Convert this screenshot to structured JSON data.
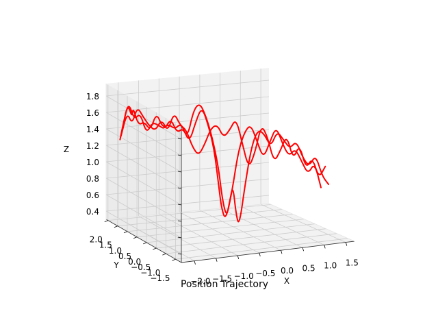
{
  "chart_data": {
    "type": "line",
    "projection": "3d",
    "title": "Position Trajectory",
    "xlabel": "X",
    "ylabel": "Y",
    "zlabel": "Z",
    "xlim": [
      -2.3,
      1.7
    ],
    "ylim": [
      -1.8,
      2.1
    ],
    "zlim": [
      0.3,
      1.95
    ],
    "x_ticks": [
      "−2.0",
      "−1.5",
      "−1.0",
      "−0.5",
      "0.0",
      "0.5",
      "1.0",
      "1.5"
    ],
    "x_tick_values": [
      -2.0,
      -1.5,
      -1.0,
      -0.5,
      0.0,
      0.5,
      1.0,
      1.5
    ],
    "y_ticks": [
      "2.0",
      "1.5",
      "1.0",
      "0.5",
      "0.0",
      "−0.5",
      "−1.0",
      "−1.5"
    ],
    "y_tick_values": [
      2.0,
      1.5,
      1.0,
      0.5,
      0.0,
      -0.5,
      -1.0,
      -1.5
    ],
    "z_ticks": [
      "1.8",
      "1.6",
      "1.4",
      "1.2",
      "1.0",
      "0.8",
      "0.6",
      "0.4"
    ],
    "z_tick_values": [
      1.8,
      1.6,
      1.4,
      1.2,
      1.0,
      0.8,
      0.6,
      0.4
    ],
    "grid": true,
    "pane_color": "#f2f2f2",
    "grid_color": "#cccccc",
    "series": [
      {
        "color": "#ff0000",
        "points": [
          [
            -2.1,
            1.8,
            1.3
          ],
          [
            -2.05,
            1.7,
            1.55
          ],
          [
            -2.0,
            1.6,
            1.75
          ],
          [
            -1.95,
            1.5,
            1.6
          ],
          [
            -1.9,
            1.55,
            1.72
          ],
          [
            -1.8,
            1.5,
            1.5
          ],
          [
            -1.7,
            1.4,
            1.55
          ],
          [
            -1.6,
            1.3,
            1.45
          ],
          [
            -1.5,
            1.2,
            1.68
          ],
          [
            -1.4,
            1.1,
            1.5
          ],
          [
            -1.3,
            1.0,
            1.55
          ],
          [
            -1.2,
            0.9,
            1.5
          ],
          [
            -1.1,
            0.8,
            1.58
          ],
          [
            -1.0,
            0.7,
            1.4
          ],
          [
            -0.9,
            0.6,
            1.75
          ],
          [
            -0.8,
            0.5,
            1.85
          ],
          [
            -0.7,
            0.4,
            1.7
          ],
          [
            -0.6,
            0.3,
            1.45
          ],
          [
            -0.5,
            0.2,
            1.1
          ],
          [
            -0.45,
            0.1,
            0.7
          ],
          [
            -0.4,
            0.0,
            0.5
          ],
          [
            -0.35,
            -0.05,
            0.7
          ],
          [
            -0.3,
            -0.1,
            0.9
          ],
          [
            -0.25,
            -0.15,
            0.55
          ],
          [
            -0.2,
            -0.2,
            0.4
          ],
          [
            -0.1,
            -0.3,
            0.95
          ],
          [
            0.0,
            -0.4,
            1.4
          ],
          [
            0.1,
            -0.5,
            1.6
          ],
          [
            0.2,
            -0.6,
            1.55
          ],
          [
            0.3,
            -0.7,
            1.4
          ],
          [
            0.4,
            -0.8,
            1.6
          ],
          [
            0.5,
            -0.9,
            1.5
          ],
          [
            0.6,
            -1.0,
            1.4
          ],
          [
            0.7,
            -1.1,
            1.5
          ],
          [
            0.8,
            -1.2,
            1.3
          ],
          [
            0.9,
            -1.3,
            1.2
          ],
          [
            1.0,
            -1.4,
            1.35
          ],
          [
            1.1,
            -1.5,
            1.1
          ],
          [
            1.2,
            -1.6,
            1.0
          ]
        ]
      },
      {
        "color": "#ff0000",
        "points": [
          [
            -2.1,
            1.75,
            1.35
          ],
          [
            -2.0,
            1.65,
            1.65
          ],
          [
            -1.9,
            1.6,
            1.5
          ],
          [
            -1.8,
            1.55,
            1.72
          ],
          [
            -1.7,
            1.45,
            1.6
          ],
          [
            -1.6,
            1.35,
            1.5
          ],
          [
            -1.5,
            1.25,
            1.45
          ],
          [
            -1.4,
            1.15,
            1.6
          ],
          [
            -1.3,
            1.05,
            1.45
          ],
          [
            -1.2,
            0.95,
            1.7
          ],
          [
            -1.1,
            0.85,
            1.55
          ],
          [
            -1.0,
            0.75,
            1.5
          ],
          [
            -0.9,
            0.65,
            1.3
          ],
          [
            -0.8,
            0.55,
            1.2
          ],
          [
            -0.7,
            0.45,
            1.35
          ],
          [
            -0.6,
            0.35,
            1.55
          ],
          [
            -0.5,
            0.25,
            1.6
          ],
          [
            -0.4,
            0.15,
            1.45
          ],
          [
            -0.3,
            0.05,
            1.55
          ],
          [
            -0.2,
            -0.05,
            1.7
          ],
          [
            -0.1,
            -0.15,
            1.4
          ],
          [
            0.0,
            -0.25,
            1.1
          ],
          [
            0.1,
            -0.35,
            1.3
          ],
          [
            0.2,
            -0.45,
            1.65
          ],
          [
            0.3,
            -0.55,
            1.5
          ],
          [
            0.4,
            -0.65,
            1.2
          ],
          [
            0.5,
            -0.75,
            1.35
          ],
          [
            0.6,
            -0.85,
            1.55
          ],
          [
            0.7,
            -0.95,
            1.25
          ],
          [
            0.8,
            -1.05,
            1.45
          ],
          [
            0.9,
            -1.15,
            1.15
          ],
          [
            1.0,
            -1.25,
            1.3
          ],
          [
            1.1,
            -1.35,
            1.05
          ],
          [
            1.2,
            -1.45,
            1.2
          ]
        ]
      },
      {
        "color": "#ff0000",
        "points": [
          [
            -2.05,
            1.8,
            1.4
          ],
          [
            -1.95,
            1.7,
            1.78
          ],
          [
            -1.85,
            1.6,
            1.55
          ],
          [
            -1.75,
            1.5,
            1.65
          ],
          [
            -1.65,
            1.4,
            1.4
          ],
          [
            -1.55,
            1.3,
            1.55
          ],
          [
            -1.45,
            1.2,
            1.52
          ],
          [
            -1.35,
            1.1,
            1.48
          ],
          [
            -1.25,
            1.0,
            1.62
          ],
          [
            -1.15,
            0.9,
            1.45
          ],
          [
            -1.05,
            0.8,
            1.52
          ],
          [
            -0.95,
            0.7,
            1.35
          ],
          [
            -0.85,
            0.6,
            1.6
          ],
          [
            -0.75,
            0.5,
            1.8
          ],
          [
            -0.65,
            0.4,
            1.6
          ],
          [
            -0.55,
            0.3,
            1.3
          ],
          [
            -0.5,
            0.2,
            0.9
          ],
          [
            -0.45,
            0.15,
            0.6
          ],
          [
            -0.4,
            0.05,
            0.45
          ],
          [
            -0.3,
            -0.05,
            0.8
          ],
          [
            -0.2,
            -0.15,
            1.3
          ],
          [
            -0.1,
            -0.25,
            1.55
          ],
          [
            0.0,
            -0.35,
            1.65
          ],
          [
            0.1,
            -0.45,
            1.45
          ],
          [
            0.2,
            -0.55,
            1.25
          ],
          [
            0.3,
            -0.65,
            1.45
          ],
          [
            0.4,
            -0.75,
            1.65
          ],
          [
            0.5,
            -0.85,
            1.45
          ],
          [
            0.6,
            -0.95,
            1.3
          ],
          [
            0.7,
            -1.05,
            1.4
          ],
          [
            0.8,
            -1.15,
            1.25
          ],
          [
            0.9,
            -1.25,
            1.1
          ],
          [
            1.0,
            -1.35,
            1.25
          ],
          [
            1.1,
            -1.45,
            0.95
          ]
        ]
      }
    ]
  }
}
